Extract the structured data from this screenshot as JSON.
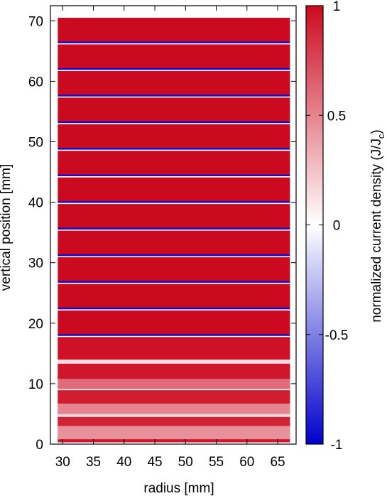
{
  "chart_data": {
    "type": "heatmap",
    "xlabel": "radius [mm]",
    "ylabel": "vertical position [mm]",
    "xlim": [
      28,
      68
    ],
    "ylim": [
      0,
      72.5
    ],
    "x_ticks": [
      30,
      35,
      40,
      45,
      50,
      55,
      60,
      65
    ],
    "y_ticks": [
      0,
      10,
      20,
      30,
      40,
      50,
      60,
      70
    ],
    "grid": false,
    "colorbar": {
      "label_main": "normalized current density (J/J",
      "label_sub": "c",
      "label_close": ")",
      "range": [
        -1,
        1
      ],
      "ticks": [
        "1",
        "0.5",
        "0",
        "-0.5",
        "-1"
      ],
      "colors": {
        "negative": "#0000cc",
        "zero": "#ffffff",
        "positive": "#cc0a1f"
      }
    },
    "pancakes": {
      "count": 16,
      "r_inner": 29.2,
      "r_outer": 67.0,
      "first_bottom": 0.3,
      "pitch": 4.4,
      "thickness": 4.2
    },
    "value_bands": [
      {
        "pancake": 0,
        "z0": 0.3,
        "z1": 0.8,
        "j": 0.95
      },
      {
        "pancake": 0,
        "z0": 0.8,
        "z1": 3.0,
        "j": 0.45
      },
      {
        "pancake": 0,
        "z0": 3.0,
        "z1": 4.5,
        "j": 0.9
      },
      {
        "pancake": 1,
        "z0": 4.7,
        "z1": 5.0,
        "j": 0.2
      },
      {
        "pancake": 1,
        "z0": 5.0,
        "z1": 6.7,
        "j": 0.5
      },
      {
        "pancake": 1,
        "z0": 6.7,
        "z1": 8.9,
        "j": 0.92
      },
      {
        "pancake": 2,
        "z0": 9.1,
        "z1": 10.8,
        "j": 0.6
      },
      {
        "pancake": 2,
        "z0": 10.8,
        "z1": 13.3,
        "j": 0.95
      },
      {
        "pancake": 3,
        "z0": 13.5,
        "z1": 14.0,
        "j": 0.15
      },
      {
        "pancake": 3,
        "z0": 14.0,
        "z1": 17.7,
        "j": 0.97
      }
    ],
    "negative_edge_mm": 0.28
  }
}
